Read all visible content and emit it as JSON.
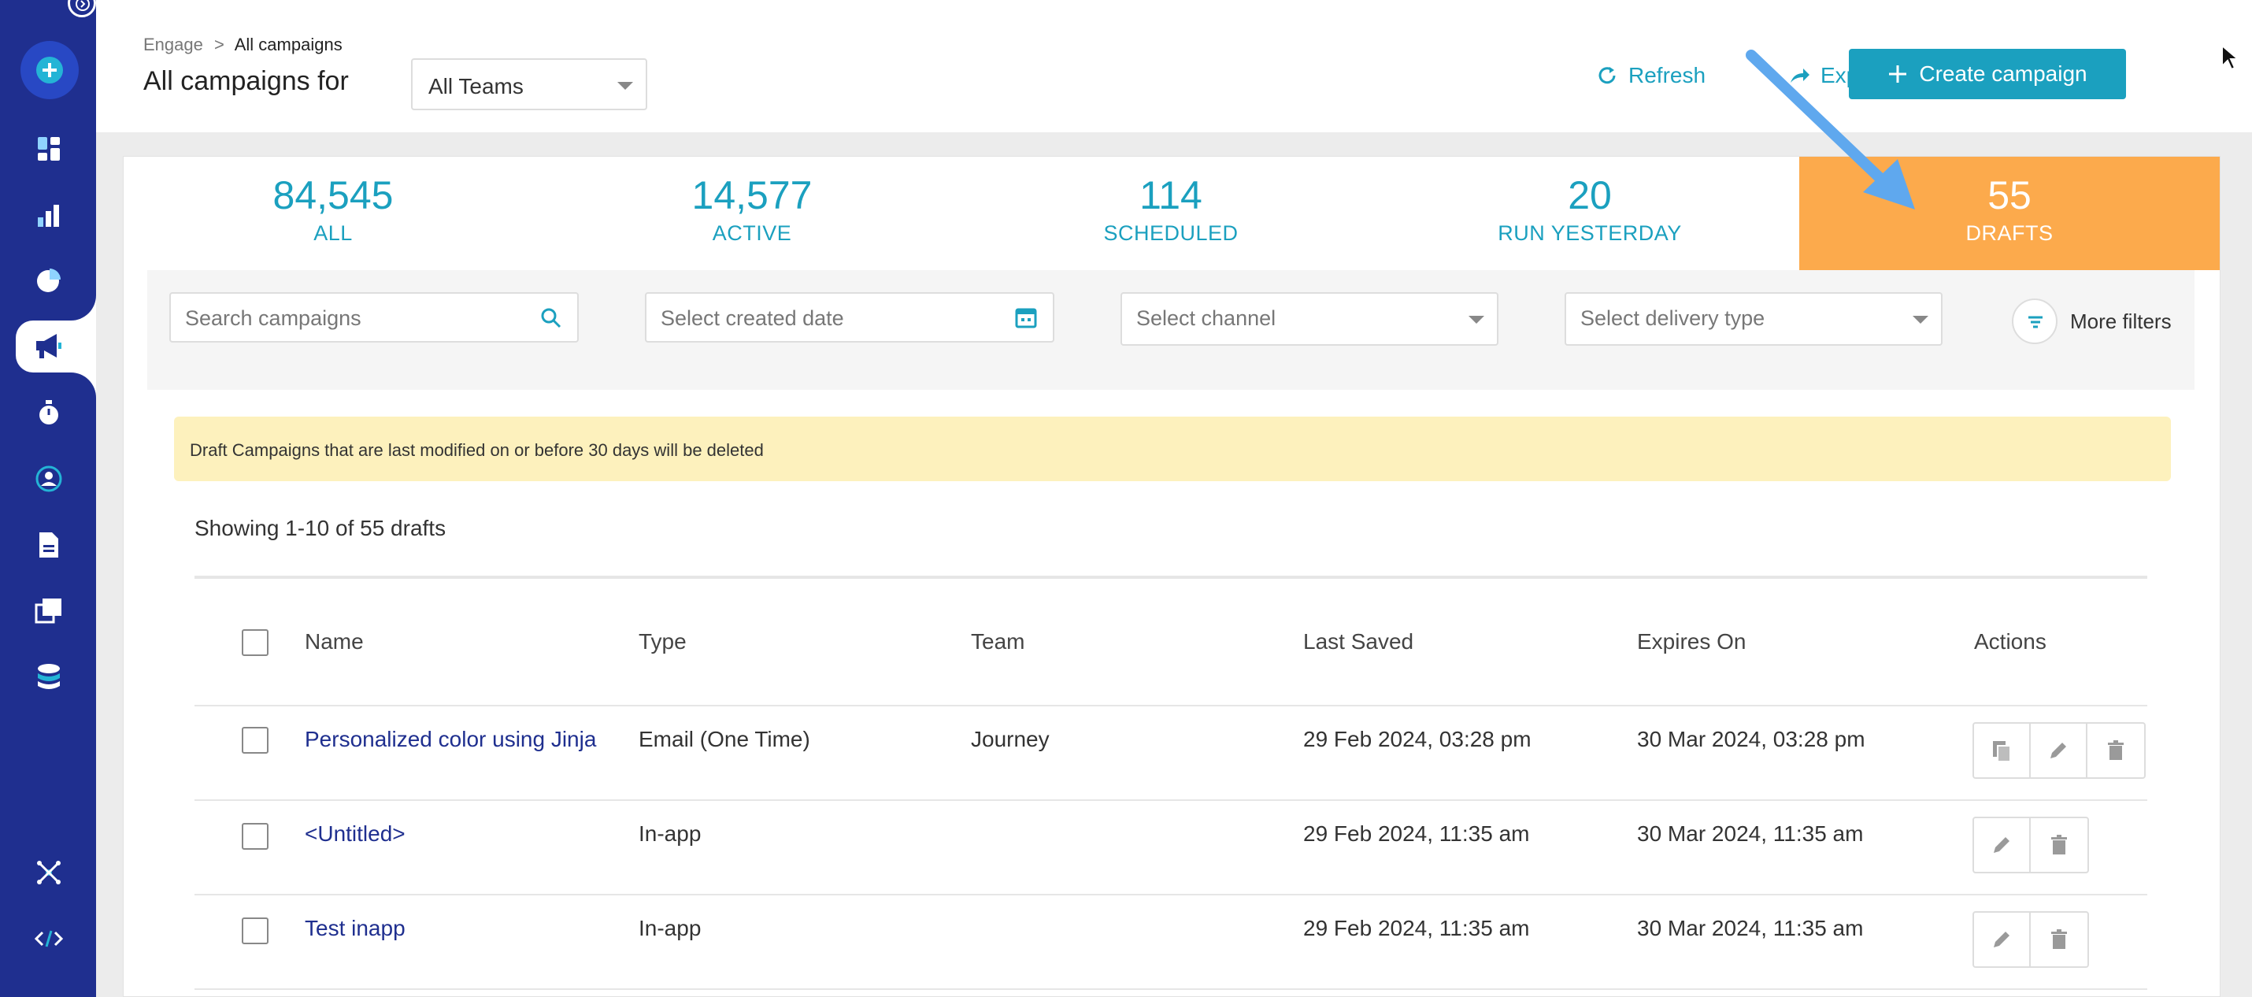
{
  "colors": {
    "sidebar": "#1f2f8f",
    "accent": "#1ba0bf",
    "drafts_tab": "#fcaa4c",
    "notice_bg": "#fdf1bd",
    "annotation_arrow": "#5fa8ee"
  },
  "sidebar": {
    "items": [
      {
        "icon": "dashboard-icon"
      },
      {
        "icon": "analytics-icon"
      },
      {
        "icon": "segments-pie-icon"
      },
      {
        "icon": "campaigns-megaphone-icon",
        "active": true
      },
      {
        "icon": "stopwatch-icon"
      },
      {
        "icon": "user-profile-icon"
      },
      {
        "icon": "document-icon"
      },
      {
        "icon": "content-library-icon"
      },
      {
        "icon": "database-icon"
      },
      {
        "icon": "integrations-hub-icon"
      },
      {
        "icon": "code-icon"
      }
    ]
  },
  "header": {
    "breadcrumb": {
      "root": "Engage",
      "separator": ">",
      "current": "All campaigns"
    },
    "title": "All campaigns for",
    "team_select": {
      "value": "All Teams"
    },
    "refresh_label": "Refresh",
    "export_label": "Export",
    "create_label": "Create campaign"
  },
  "stats": [
    {
      "value": "84,545",
      "label": "ALL"
    },
    {
      "value": "14,577",
      "label": "ACTIVE"
    },
    {
      "value": "114",
      "label": "SCHEDULED"
    },
    {
      "value": "20",
      "label": "RUN YESTERDAY"
    },
    {
      "value": "55",
      "label": "DRAFTS",
      "active": true
    }
  ],
  "filters": {
    "search_placeholder": "Search campaigns",
    "date_placeholder": "Select created date",
    "channel_placeholder": "Select channel",
    "delivery_placeholder": "Select delivery type",
    "more_filters_label": "More filters"
  },
  "notice": "Draft Campaigns that are last modified on or before 30 days will be deleted",
  "showing": "Showing 1-10 of 55 drafts",
  "table": {
    "columns": [
      "Name",
      "Type",
      "Team",
      "Last Saved",
      "Expires On",
      "Actions"
    ],
    "rows": [
      {
        "name": "Personalized color using Jinja",
        "type": "Email (One Time)",
        "team": "Journey",
        "last_saved": "29 Feb 2024, 03:28 pm",
        "expires_on": "30 Mar 2024, 03:28 pm",
        "actions": [
          "copy-icon",
          "edit-icon",
          "delete-icon"
        ]
      },
      {
        "name": "<Untitled>",
        "type": "In-app",
        "team": "",
        "last_saved": "29 Feb 2024, 11:35 am",
        "expires_on": "30 Mar 2024, 11:35 am",
        "actions": [
          "edit-icon",
          "delete-icon"
        ]
      },
      {
        "name": "Test inapp",
        "type": "In-app",
        "team": "",
        "last_saved": "29 Feb 2024, 11:35 am",
        "expires_on": "30 Mar 2024, 11:35 am",
        "actions": [
          "edit-icon",
          "delete-icon"
        ]
      }
    ]
  }
}
